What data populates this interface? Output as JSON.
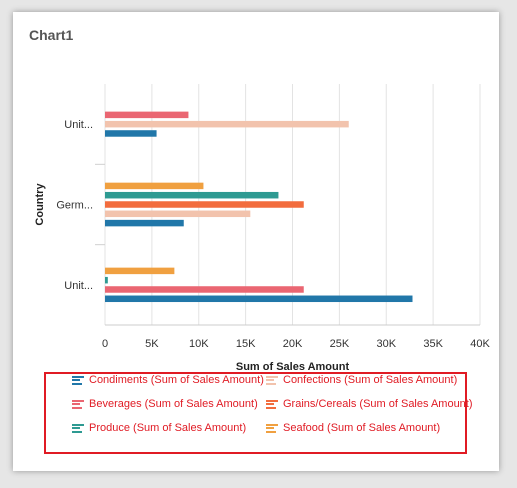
{
  "card": {
    "title": "Chart1"
  },
  "chart_data": {
    "type": "bar",
    "orientation": "horizontal",
    "title": "Chart1",
    "xlabel": "Sum of Sales Amount",
    "ylabel": "Country",
    "xlim": [
      0,
      40000
    ],
    "x_ticks": [
      0,
      5000,
      10000,
      15000,
      20000,
      25000,
      30000,
      35000,
      40000
    ],
    "x_tick_labels": [
      "0",
      "5K",
      "10K",
      "15K",
      "20K",
      "25K",
      "30K",
      "35K",
      "40K"
    ],
    "categories": [
      "Unit...",
      "Germ...",
      "Unit..."
    ],
    "grid": true,
    "legend_position": "bottom",
    "series": [
      {
        "name": "Condiments (Sum of Sales Amount)",
        "color": "#2177a9",
        "values": [
          5500,
          8400,
          32800
        ]
      },
      {
        "name": "Confections (Sum of Sales Amount)",
        "color": "#f2c3ad",
        "values": [
          26000,
          15500,
          null
        ]
      },
      {
        "name": "Beverages (Sum of Sales Amount)",
        "color": "#ea6672",
        "values": [
          8900,
          null,
          21200
        ]
      },
      {
        "name": "Grains/Cereals (Sum of Sales Amount)",
        "color": "#f26c3d",
        "values": [
          null,
          21200,
          null
        ]
      },
      {
        "name": "Produce (Sum of Sales Amount)",
        "color": "#2e9a92",
        "values": [
          null,
          18500,
          300
        ]
      },
      {
        "name": "Seafood (Sum of Sales Amount)",
        "color": "#f0a040",
        "values": [
          null,
          10500,
          7400
        ]
      }
    ]
  }
}
